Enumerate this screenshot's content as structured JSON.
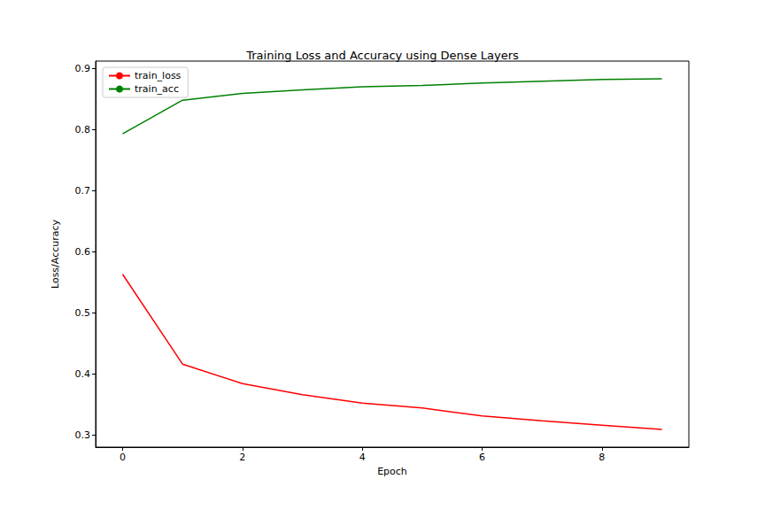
{
  "chart_data": {
    "type": "line",
    "title": "Training Loss and Accuracy using Dense Layers",
    "x_label": "Epoch",
    "y_label": "Loss/Accuracy",
    "x": [
      0,
      1,
      2,
      3,
      4,
      5,
      6,
      7,
      8,
      9
    ],
    "series": [
      {
        "name": "train_loss",
        "color": "#ff0000",
        "values": [
          0.563,
          0.416,
          0.384,
          0.366,
          0.352,
          0.344,
          0.331,
          0.323,
          0.316,
          0.309
        ]
      },
      {
        "name": "train_acc",
        "color": "#008000",
        "values": [
          0.793,
          0.848,
          0.859,
          0.865,
          0.87,
          0.872,
          0.876,
          0.879,
          0.882,
          0.883
        ]
      }
    ],
    "xlim": [
      -0.45,
      9.45
    ],
    "xticks": [
      0,
      2,
      4,
      6,
      8
    ],
    "ylim": [
      0.28,
      0.912
    ],
    "yticks": [
      0.3,
      0.4,
      0.5,
      0.6,
      0.7,
      0.8,
      0.9
    ],
    "grid": false,
    "legend": "upper left"
  }
}
